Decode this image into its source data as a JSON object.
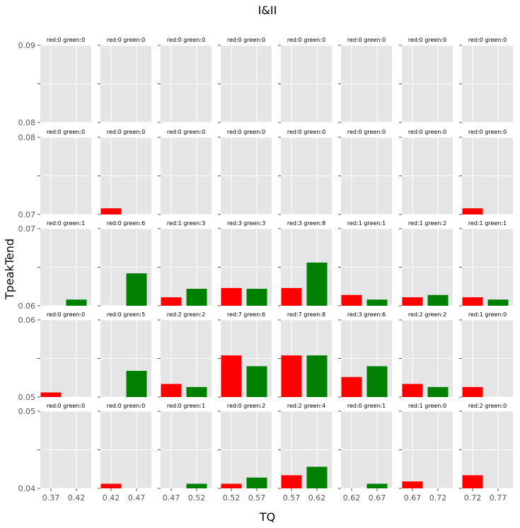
{
  "chart_data": {
    "type": "bar",
    "title": "I&II",
    "xlabel": "TQ",
    "ylabel": "TpeakTend",
    "colors": {
      "red": "#ff0000",
      "green": "#008000",
      "panel_bg": "#e5e5e5",
      "grid": "#ffffff"
    },
    "col_x_ticks": [
      [
        "0.37",
        "0.42"
      ],
      [
        "0.42",
        "0.47"
      ],
      [
        "0.47",
        "0.52"
      ],
      [
        "0.52",
        "0.57"
      ],
      [
        "0.57",
        "0.62"
      ],
      [
        "0.62",
        "0.67"
      ],
      [
        "0.67",
        "0.72"
      ],
      [
        "0.72",
        "0.77"
      ]
    ],
    "rows": [
      {
        "ylim": [
          0.08,
          0.09
        ],
        "ytick_labels": [
          "0.08",
          "",
          "0.09"
        ],
        "ytick_values": [
          0.08,
          0.085,
          0.09
        ],
        "panels": [
          {
            "label": "red:0 green:0",
            "red": 0,
            "green": 0
          },
          {
            "label": "red:0 green:0",
            "red": 0,
            "green": 0
          },
          {
            "label": "red:0 green:0",
            "red": 0,
            "green": 0
          },
          {
            "label": "red:0 green:0",
            "red": 0,
            "green": 0
          },
          {
            "label": "red:0 green:0",
            "red": 0,
            "green": 0
          },
          {
            "label": "red:0 green:0",
            "red": 0,
            "green": 0
          },
          {
            "label": "red:0 green:0",
            "red": 0,
            "green": 0
          },
          {
            "label": "red:0 green:0",
            "red": 0,
            "green": 0
          }
        ]
      },
      {
        "ylim": [
          0.07,
          0.08
        ],
        "ytick_labels": [
          "0.07",
          "",
          "0.08"
        ],
        "ytick_values": [
          0.07,
          0.075,
          0.08
        ],
        "panels": [
          {
            "label": "red:0 green:0",
            "red": 0,
            "green": 0
          },
          {
            "label": "red:0 green:0",
            "red": 0,
            "green": 0
          },
          {
            "label": "red:0 green:0",
            "red": 0,
            "green": 0
          },
          {
            "label": "red:0 green:0",
            "red": 0,
            "green": 0
          },
          {
            "label": "red:0 green:0",
            "red": 0,
            "green": 0
          },
          {
            "label": "red:0 green:0",
            "red": 0,
            "green": 0
          },
          {
            "label": "red:0 green:0",
            "red": 0,
            "green": 0
          },
          {
            "label": "red:0 green:0",
            "red": 0,
            "green": 0
          }
        ]
      },
      {
        "ylim": [
          0.06,
          0.07
        ],
        "ytick_labels": [
          "0.06",
          "",
          "0.07"
        ],
        "ytick_values": [
          0.06,
          0.065,
          0.07
        ],
        "panels": [
          {
            "label": "red:0 green:1",
            "red": 0,
            "green": 1
          },
          {
            "label": "red:0 green:6",
            "red": 0,
            "green": 6
          },
          {
            "label": "red:1 green:3",
            "red": 1,
            "green": 3
          },
          {
            "label": "red:3 green:3",
            "red": 3,
            "green": 3
          },
          {
            "label": "red:3 green:8",
            "red": 3,
            "green": 8
          },
          {
            "label": "red:1 green:1",
            "red": 1,
            "green": 1
          },
          {
            "label": "red:1 green:2",
            "red": 1,
            "green": 2
          },
          {
            "label": "red:1 green:1",
            "red": 1,
            "green": 1
          }
        ]
      },
      {
        "ylim": [
          0.05,
          0.06
        ],
        "ytick_labels": [
          "0.05",
          "",
          "0.06"
        ],
        "ytick_values": [
          0.05,
          0.055,
          0.06
        ],
        "panels": [
          {
            "label": "red:0 green:0",
            "red": 0,
            "green": 0
          },
          {
            "label": "red:0 green:5",
            "red": 0,
            "green": 5
          },
          {
            "label": "red:2 green:2",
            "red": 2,
            "green": 2
          },
          {
            "label": "red:7 green:6",
            "red": 7,
            "green": 6
          },
          {
            "label": "red:7 green:8",
            "red": 7,
            "green": 8
          },
          {
            "label": "red:3 green:6",
            "red": 3,
            "green": 6
          },
          {
            "label": "red:2 green:2",
            "red": 2,
            "green": 2
          },
          {
            "label": "red:1 green:0",
            "red": 1,
            "green": 0
          }
        ]
      },
      {
        "ylim": [
          0.04,
          0.05
        ],
        "ytick_labels": [
          "0.04",
          "",
          "0.05"
        ],
        "ytick_values": [
          0.04,
          0.045,
          0.05
        ],
        "panels": [
          {
            "label": "red:0 green:0",
            "red": 0,
            "green": 0
          },
          {
            "label": "red:0 green:0",
            "red": 0,
            "green": 0
          },
          {
            "label": "red:0 green:1",
            "red": 0,
            "green": 1
          },
          {
            "label": "red:0 green:2",
            "red": 0,
            "green": 2
          },
          {
            "label": "red:2 green:4",
            "red": 2,
            "green": 4
          },
          {
            "label": "red:0 green:1",
            "red": 0,
            "green": 1
          },
          {
            "label": "red:1 green:0",
            "red": 1,
            "green": 0
          },
          {
            "label": "red:2 green:0",
            "red": 2,
            "green": 0
          }
        ]
      }
    ],
    "bar_values": {
      "rows": [
        {
          "panels": [
            {
              "red": 0,
              "green": 0
            },
            {
              "red": 0,
              "green": 0
            },
            {
              "red": 0,
              "green": 0
            },
            {
              "red": 0,
              "green": 0
            },
            {
              "red": 0,
              "green": 0
            },
            {
              "red": 0,
              "green": 0
            },
            {
              "red": 0,
              "green": 0
            },
            {
              "red": 0,
              "green": 0
            }
          ]
        },
        {
          "panels": [
            {
              "red": 0,
              "green": 0
            },
            {
              "red": 0.0008,
              "green": 0
            },
            {
              "red": 0,
              "green": 0
            },
            {
              "red": 0,
              "green": 0
            },
            {
              "red": 0,
              "green": 0
            },
            {
              "red": 0,
              "green": 0
            },
            {
              "red": 0,
              "green": 0
            },
            {
              "red": 0.0008,
              "green": 0
            }
          ]
        },
        {
          "panels": [
            {
              "red": 0,
              "green": 0.0008
            },
            {
              "red": 0,
              "green": 0.0042
            },
            {
              "red": 0.0011,
              "green": 0.0022
            },
            {
              "red": 0.0023,
              "green": 0.0022
            },
            {
              "red": 0.0023,
              "green": 0.0056
            },
            {
              "red": 0.0014,
              "green": 0.0008
            },
            {
              "red": 0.0011,
              "green": 0.0014
            },
            {
              "red": 0.0011,
              "green": 0.0008
            }
          ]
        },
        {
          "panels": [
            {
              "red": 0.0006,
              "green": 0
            },
            {
              "red": 0,
              "green": 0.0034
            },
            {
              "red": 0.0017,
              "green": 0.0013
            },
            {
              "red": 0.0054,
              "green": 0.004
            },
            {
              "red": 0.0054,
              "green": 0.0054
            },
            {
              "red": 0.0026,
              "green": 0.004
            },
            {
              "red": 0.0017,
              "green": 0.0013
            },
            {
              "red": 0.0013,
              "green": 0
            }
          ]
        },
        {
          "panels": [
            {
              "red": 0,
              "green": 0
            },
            {
              "red": 0.0006,
              "green": 0
            },
            {
              "red": 0,
              "green": 0.0006
            },
            {
              "red": 0.0006,
              "green": 0.0014
            },
            {
              "red": 0.0017,
              "green": 0.0028
            },
            {
              "red": 0,
              "green": 0.0006
            },
            {
              "red": 0.0009,
              "green": 0
            },
            {
              "red": 0.0017,
              "green": 0
            }
          ]
        }
      ]
    }
  }
}
